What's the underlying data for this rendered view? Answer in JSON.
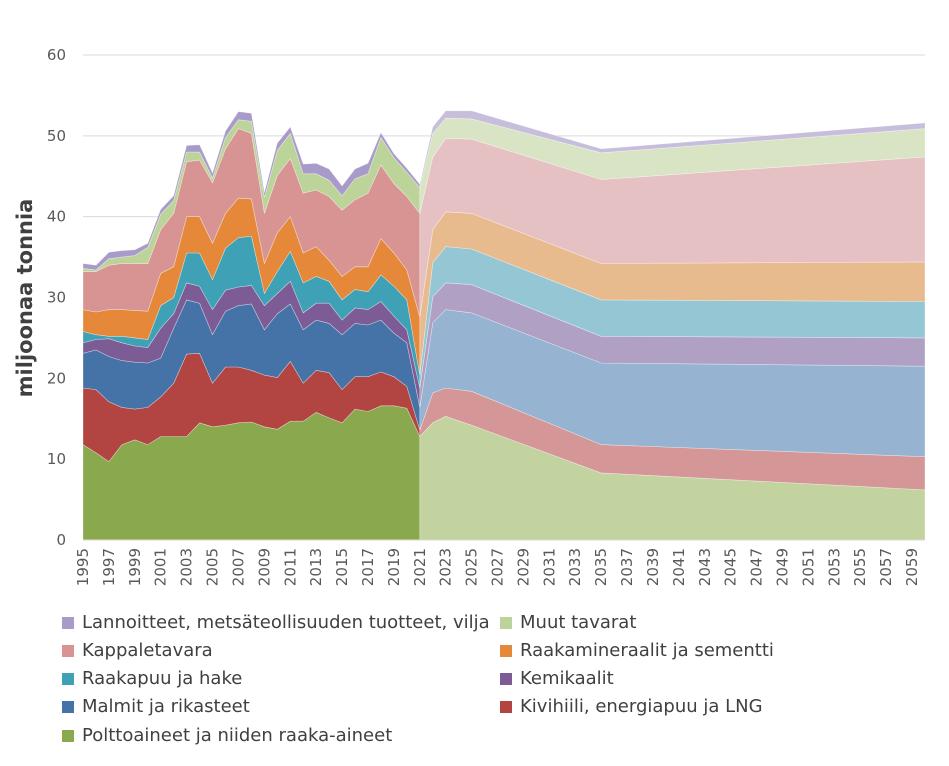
{
  "chart_data": {
    "type": "area",
    "stacked": true,
    "title": "",
    "xlabel": "",
    "ylabel": "miljoonaa tonnia",
    "ylim": [
      0,
      60
    ],
    "xlim": [
      1995,
      2060
    ],
    "grid": true,
    "legend_position": "bottom",
    "y_ticks": [
      "0",
      "10",
      "20",
      "30",
      "40",
      "50",
      "60"
    ],
    "x_ticks": [
      "1995",
      "1997",
      "1999",
      "2001",
      "2003",
      "2005",
      "2007",
      "2009",
      "2011",
      "2013",
      "2015",
      "2017",
      "2019",
      "2021",
      "2023",
      "2025",
      "2027",
      "2029",
      "2031",
      "2033",
      "2035",
      "2037",
      "2039",
      "2041",
      "2043",
      "2045",
      "2047",
      "2049",
      "2051",
      "2053",
      "2055",
      "2057",
      "2059"
    ],
    "historical": {
      "x": [
        1995,
        1996,
        1997,
        1998,
        1999,
        2000,
        2001,
        2002,
        2003,
        2004,
        2005,
        2006,
        2007,
        2008,
        2009,
        2010,
        2011,
        2012,
        2013,
        2014,
        2015,
        2016,
        2017,
        2018,
        2019,
        2020,
        2021
      ],
      "series": [
        {
          "name": "Polttoaineet ja niiden raaka-aineet",
          "color": "#8aa84e",
          "values": [
            11.8,
            10.8,
            9.7,
            11.8,
            12.4,
            11.8,
            12.8,
            12.8,
            12.8,
            14.5,
            14.0,
            14.2,
            14.5,
            14.6,
            14.0,
            13.7,
            14.7,
            14.7,
            15.8,
            15.1,
            14.5,
            16.2,
            15.9,
            16.6,
            16.6,
            16.3,
            12.8
          ]
        },
        {
          "name": "Kivihiili, energiapuu ja LNG",
          "color": "#b24442",
          "values": [
            7.0,
            7.8,
            7.4,
            4.6,
            3.8,
            4.6,
            4.9,
            6.6,
            10.2,
            8.6,
            5.4,
            7.2,
            6.9,
            6.4,
            6.4,
            6.4,
            7.4,
            4.7,
            5.2,
            5.6,
            4.1,
            4.0,
            4.3,
            4.2,
            3.6,
            2.7,
            0.8
          ]
        },
        {
          "name": "Malmit ja rikasteet",
          "color": "#4572a7",
          "values": [
            4.3,
            4.9,
            5.6,
            5.8,
            5.8,
            5.5,
            4.8,
            6.8,
            6.7,
            6.2,
            6.0,
            6.9,
            7.6,
            8.2,
            5.6,
            7.9,
            7.1,
            6.6,
            6.2,
            6.1,
            6.8,
            6.6,
            6.4,
            6.4,
            5.4,
            5.4,
            2.8
          ]
        },
        {
          "name": "Kemikaalit",
          "color": "#7d5c96",
          "values": [
            1.3,
            1.3,
            2.2,
            2.2,
            2.0,
            1.9,
            3.7,
            1.8,
            2.1,
            2.1,
            3.1,
            2.6,
            2.3,
            2.3,
            3.0,
            2.5,
            2.8,
            2.1,
            2.1,
            2.5,
            1.8,
            1.9,
            1.9,
            2.3,
            2.1,
            1.6,
            2.4
          ]
        },
        {
          "name": "Raakapuu ja hake",
          "color": "#3fa1b5",
          "values": [
            1.4,
            0.6,
            0.3,
            0.8,
            1.0,
            1.0,
            2.8,
            2.0,
            3.7,
            4.1,
            3.7,
            5.2,
            6.1,
            6.1,
            1.5,
            2.7,
            3.7,
            3.7,
            3.3,
            2.7,
            2.5,
            2.3,
            2.2,
            3.3,
            3.7,
            3.7,
            1.6
          ]
        },
        {
          "name": "Raakamineraalit ja sementti",
          "color": "#e6883a",
          "values": [
            2.7,
            2.8,
            3.3,
            3.3,
            3.4,
            3.5,
            4.0,
            3.8,
            4.5,
            4.5,
            4.5,
            4.3,
            4.9,
            4.6,
            3.7,
            4.8,
            4.3,
            3.7,
            3.7,
            2.6,
            2.9,
            2.8,
            3.1,
            4.5,
            4.1,
            3.7,
            7.2
          ]
        },
        {
          "name": "Kappaletavara",
          "color": "#d79492",
          "values": [
            4.7,
            5.0,
            5.5,
            5.7,
            5.8,
            5.9,
            5.4,
            6.6,
            6.8,
            7.0,
            7.5,
            8.0,
            8.6,
            8.1,
            6.2,
            7.1,
            7.2,
            7.4,
            7.0,
            7.9,
            8.2,
            8.3,
            9.1,
            9.1,
            8.6,
            9.1,
            12.8
          ]
        },
        {
          "name": "Muut tavarat",
          "color": "#bcd39a",
          "values": [
            0.4,
            0.2,
            0.8,
            0.8,
            1.0,
            2.0,
            1.9,
            1.6,
            1.2,
            1.0,
            0.6,
            1.4,
            1.1,
            1.5,
            2.0,
            3.1,
            3.1,
            2.4,
            2.0,
            2.0,
            1.8,
            2.6,
            2.4,
            3.4,
            3.2,
            3.0,
            3.2
          ]
        },
        {
          "name": "Lannoitteet, metsäteollisuuden tuotteet, vilja",
          "color": "#a99bc9",
          "values": [
            0.6,
            0.6,
            0.8,
            0.8,
            0.7,
            0.5,
            0.6,
            0.6,
            0.8,
            0.9,
            0.6,
            0.8,
            1.0,
            1.0,
            0.6,
            0.9,
            0.8,
            1.2,
            1.3,
            1.4,
            1.2,
            1.2,
            1.3,
            0.6,
            0.5,
            0.5,
            0.4
          ]
        }
      ]
    },
    "projection": {
      "x": [
        2021,
        2022,
        2023,
        2025,
        2035,
        2060
      ],
      "series": [
        {
          "name": "Polttoaineet ja niiden raaka-aineet",
          "color": "#c2d3a0",
          "values": [
            12.8,
            14.5,
            15.3,
            14.2,
            8.3,
            6.2
          ]
        },
        {
          "name": "Kivihiili, energiapuu ja LNG",
          "color": "#d49696",
          "values": [
            0.8,
            3.7,
            3.5,
            4.2,
            3.5,
            4.1
          ]
        },
        {
          "name": "Malmit ja rikasteet",
          "color": "#97b3d2",
          "values": [
            2.8,
            8.7,
            9.7,
            9.7,
            10.1,
            11.2
          ]
        },
        {
          "name": "Kemikaalit",
          "color": "#b0a1c4",
          "values": [
            2.4,
            3.2,
            3.3,
            3.5,
            3.3,
            3.5
          ]
        },
        {
          "name": "Raakapuu ja hake",
          "color": "#95c6d4",
          "values": [
            1.6,
            4.2,
            4.5,
            4.4,
            4.5,
            4.5
          ]
        },
        {
          "name": "Raakamineraalit ja sementti",
          "color": "#e8bb8f",
          "values": [
            7.2,
            4.1,
            4.3,
            4.4,
            4.5,
            4.9
          ]
        },
        {
          "name": "Kappaletavara",
          "color": "#e6c1c4",
          "values": [
            12.8,
            9.0,
            9.1,
            9.2,
            10.4,
            13.0
          ]
        },
        {
          "name": "Muut tavarat",
          "color": "#d8e4c4",
          "values": [
            3.2,
            2.9,
            2.5,
            2.5,
            3.3,
            3.5
          ]
        },
        {
          "name": "Lannoitteet, metsäteollisuuden tuotteet, vilja",
          "color": "#c6bedb",
          "values": [
            0.4,
            0.8,
            0.9,
            1.0,
            0.5,
            0.7
          ]
        }
      ]
    },
    "legend": [
      {
        "label": "Lannoitteet, metsäteollisuuden tuotteet, vilja",
        "color": "#a99bc9"
      },
      {
        "label": "Muut tavarat",
        "color": "#bcd39a"
      },
      {
        "label": "Kappaletavara",
        "color": "#d79492"
      },
      {
        "label": "Raakamineraalit ja sementti",
        "color": "#e6883a"
      },
      {
        "label": "Raakapuu ja hake",
        "color": "#3fa1b5"
      },
      {
        "label": "Kemikaalit",
        "color": "#7d5c96"
      },
      {
        "label": "Malmit ja rikasteet",
        "color": "#4572a7"
      },
      {
        "label": "Kivihiili, energiapuu ja LNG",
        "color": "#b24442"
      },
      {
        "label": "Polttoaineet ja niiden raaka-aineet",
        "color": "#8aa84e"
      }
    ]
  }
}
